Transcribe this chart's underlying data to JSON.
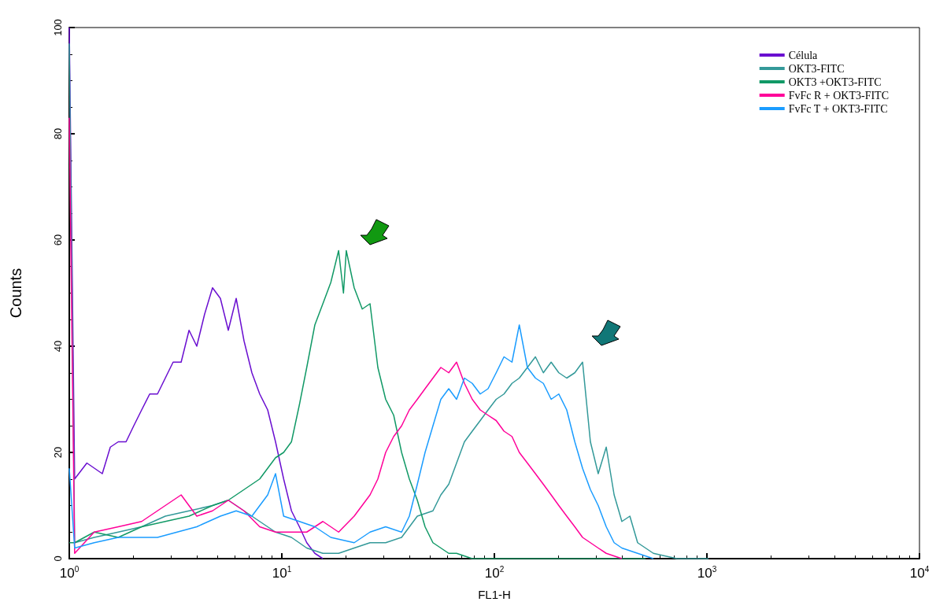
{
  "chart_data": {
    "type": "line",
    "xlabel": "FL1-H",
    "ylabel": "Counts",
    "log": "x",
    "xlim": [
      1,
      10000
    ],
    "xticks": [
      {
        "value": 1,
        "label": "10$^{0}$"
      },
      {
        "value": 10,
        "label": "10$^{1}$"
      },
      {
        "value": 100,
        "label": "10$^{2}$"
      },
      {
        "value": 1000,
        "label": "10$^{3}$"
      },
      {
        "value": 10000,
        "label": "10$^{4}$"
      }
    ],
    "ylim": [
      0,
      100
    ],
    "yticks": [
      0,
      20,
      40,
      60,
      80,
      100
    ],
    "grid": false,
    "legend": "top right",
    "marker": "none",
    "line_style": "solid",
    "series": [
      {
        "name": "Célula",
        "color": "#6a0fd0",
        "x": [
          1,
          1.06,
          1.21,
          1.43,
          1.56,
          1.7,
          1.85,
          2.01,
          2.19,
          2.39,
          2.6,
          2.83,
          3.08,
          3.36,
          3.66,
          3.98,
          4.33,
          4.72,
          5.14,
          5.6,
          6.1,
          6.64,
          7.23,
          7.87,
          8.58,
          9.34,
          10.2,
          11.1,
          12.1,
          13.1,
          14.3,
          15.6
        ],
        "values": [
          100,
          15,
          18,
          16,
          21,
          22,
          22,
          25,
          28,
          31,
          31,
          34,
          37,
          37,
          43,
          40,
          46,
          51,
          49,
          43,
          49,
          41,
          35,
          31,
          28,
          22,
          15,
          9,
          6,
          3,
          1,
          0
        ]
      },
      {
        "name": "OKT3-FITC",
        "color": "#339999",
        "x": [
          1,
          1.06,
          1.31,
          1.7,
          2.19,
          2.83,
          3.66,
          4.72,
          5.6,
          6.64,
          7.87,
          9.34,
          11.1,
          13.1,
          15.6,
          18.5,
          21.9,
          26.0,
          30.8,
          36.6,
          43.4,
          51.4,
          56.0,
          61.0,
          66.4,
          72.3,
          78.7,
          85.8,
          93.4,
          102,
          111,
          121,
          131,
          143,
          156,
          170,
          185,
          201,
          219,
          239,
          260,
          283,
          308,
          336,
          366,
          398,
          434,
          472,
          560,
          723,
          1018
        ],
        "values": [
          97,
          3,
          4,
          5,
          6,
          8,
          9,
          10,
          11,
          9,
          7,
          5,
          4,
          2,
          1,
          1,
          2,
          3,
          3,
          4,
          8,
          9,
          12,
          14,
          18,
          22,
          24,
          26,
          28,
          30,
          31,
          33,
          34,
          36,
          38,
          35,
          37,
          35,
          34,
          35,
          37,
          22,
          16,
          21,
          12,
          7,
          8,
          3,
          1,
          0,
          0
        ]
      },
      {
        "name": "OKT3 +OKT3-FITC",
        "color": "#119966",
        "x": [
          1,
          1.06,
          1.31,
          1.7,
          2.19,
          2.83,
          3.66,
          4.72,
          5.6,
          6.64,
          7.87,
          9.34,
          10.2,
          11.1,
          12.1,
          13.1,
          14.3,
          15.6,
          17.0,
          18.5,
          19.5,
          20.1,
          21.9,
          23.9,
          26.0,
          28.3,
          30.8,
          33.6,
          36.6,
          39.8,
          43.4,
          47.2,
          51.4,
          56.0,
          61.0,
          66.4,
          78.7,
          102,
          143,
          514
        ],
        "values": [
          3,
          3,
          5,
          4,
          6,
          7,
          8,
          10,
          11,
          13,
          15,
          19,
          20,
          22,
          29,
          36,
          44,
          48,
          52,
          58,
          50,
          58,
          51,
          47,
          48,
          36,
          30,
          27,
          20,
          15,
          11,
          6,
          3,
          2,
          1,
          1,
          0,
          0,
          0,
          0
        ]
      },
      {
        "name": "FvFc R + OKT3-FITC",
        "color": "#ff0099",
        "x": [
          1,
          1.06,
          1.31,
          1.7,
          2.19,
          2.83,
          3.36,
          3.98,
          4.72,
          5.6,
          6.64,
          7.87,
          9.34,
          11.1,
          13.1,
          15.6,
          18.5,
          21.9,
          26.0,
          28.3,
          30.8,
          33.6,
          36.6,
          39.8,
          43.4,
          47.2,
          51.4,
          56.0,
          61.0,
          66.4,
          72.3,
          78.7,
          85.8,
          93.4,
          102,
          111,
          121,
          131,
          143,
          156,
          170,
          185,
          201,
          219,
          239,
          260,
          283,
          308,
          336,
          398
        ],
        "values": [
          83,
          1,
          5,
          6,
          7,
          10,
          12,
          8,
          9,
          11,
          9,
          6,
          5,
          5,
          5,
          7,
          5,
          8,
          12,
          15,
          20,
          23,
          25,
          28,
          30,
          32,
          34,
          36,
          35,
          37,
          33,
          30,
          28,
          27,
          26,
          24,
          23,
          20,
          18,
          16,
          14,
          12,
          10,
          8,
          6,
          4,
          3,
          2,
          1,
          0
        ]
      },
      {
        "name": "FvFc T + OKT3-FITC",
        "color": "#1a9cff",
        "x": [
          1,
          1.06,
          1.31,
          1.7,
          2.6,
          3.98,
          5.14,
          6.1,
          7.23,
          8.58,
          9.34,
          10.2,
          12.1,
          14.3,
          17.0,
          21.9,
          26.0,
          30.8,
          36.6,
          39.8,
          43.4,
          47.2,
          51.4,
          56.0,
          61.0,
          66.4,
          72.3,
          78.7,
          85.8,
          93.4,
          102,
          111,
          121,
          131,
          143,
          156,
          170,
          185,
          201,
          219,
          239,
          260,
          283,
          308,
          336,
          366,
          398,
          472,
          560
        ],
        "values": [
          17,
          2,
          3,
          4,
          4,
          6,
          8,
          9,
          8,
          12,
          16,
          8,
          7,
          6,
          4,
          3,
          5,
          6,
          5,
          8,
          14,
          20,
          25,
          30,
          32,
          30,
          34,
          33,
          31,
          32,
          35,
          38,
          37,
          44,
          36,
          34,
          33,
          30,
          31,
          28,
          22,
          17,
          13,
          10,
          6,
          3,
          2,
          1,
          0
        ]
      }
    ]
  }
}
